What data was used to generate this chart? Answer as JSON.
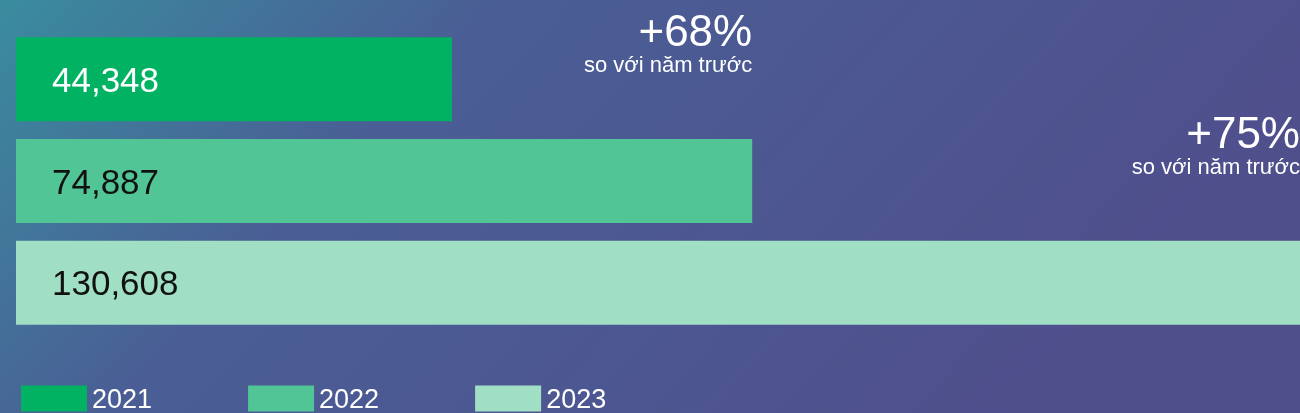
{
  "chart_data": {
    "type": "bar",
    "orientation": "horizontal",
    "categories": [
      null
    ],
    "series": [
      {
        "name": "2021",
        "color": "#00b262",
        "values": [
          44348
        ],
        "value_labels": [
          "44,348"
        ]
      },
      {
        "name": "2022",
        "color": "#52c596",
        "values": [
          74887
        ],
        "value_labels": [
          "74,887"
        ]
      },
      {
        "name": "2023",
        "color": "#a1dfc4",
        "values": [
          130608
        ],
        "value_labels": [
          "130,608"
        ]
      }
    ],
    "annotations": [
      "+68%\nso với năm trước",
      "+75%\nso với năm trước"
    ],
    "legend": "bottom left",
    "grid": false
  }
}
